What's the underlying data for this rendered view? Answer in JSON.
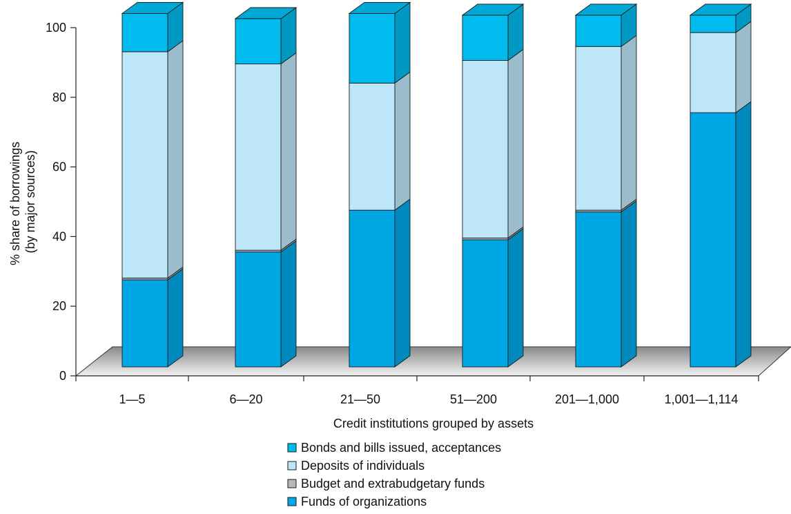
{
  "chart_data": {
    "type": "bar",
    "stacked": true,
    "style": "3d",
    "title": "",
    "xlabel": "Credit institutions grouped by assets",
    "ylabel": [
      "% share of borrowings",
      "(by major sources)"
    ],
    "ylim": [
      0,
      100
    ],
    "yticks": [
      "0",
      "20",
      "40",
      "60",
      "80",
      "100"
    ],
    "categories": [
      "1—5",
      "6—20",
      "21—50",
      "51—200",
      "201—1,000",
      "1,001—1,114"
    ],
    "series": [
      {
        "name": "Funds of organizations",
        "color": "#00a7e5",
        "values": [
          25,
          33,
          45,
          36.5,
          44.5,
          73
        ]
      },
      {
        "name": "Budget and extrabudgetary funds",
        "color": "#b5b8ba",
        "values": [
          0.5,
          0.5,
          0,
          0.5,
          0.5,
          0
        ]
      },
      {
        "name": "Deposits of individuals",
        "color": "#bde6f8",
        "values": [
          65,
          53.5,
          36.5,
          51,
          47,
          23
        ]
      },
      {
        "name": "Bonds and bills issued, acceptances",
        "color": "#00bbee",
        "values": [
          11,
          13,
          20,
          13,
          9,
          5
        ]
      }
    ],
    "legend": {
      "position": "bottom",
      "order": [
        "Bonds and bills issued, acceptances",
        "Deposits of individuals",
        "Budget and extrabudgetary funds",
        "Funds of organizations"
      ]
    },
    "grid": false
  }
}
